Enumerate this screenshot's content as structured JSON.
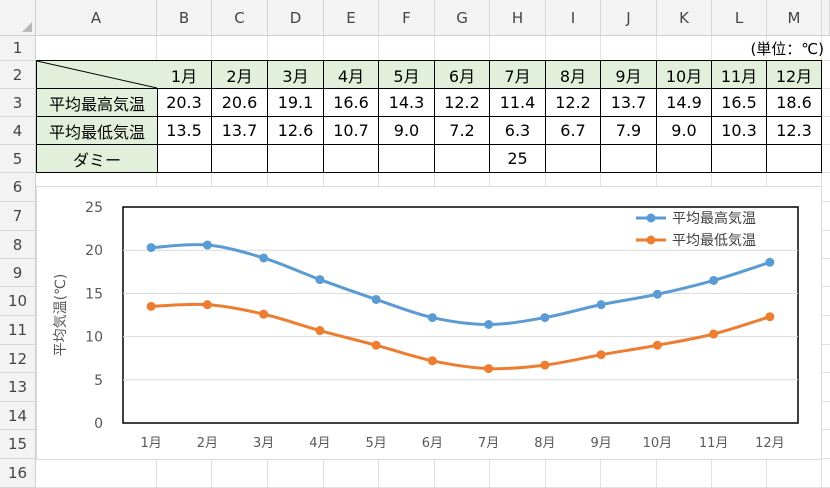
{
  "columns": [
    "A",
    "B",
    "C",
    "D",
    "E",
    "F",
    "G",
    "H",
    "I",
    "J",
    "K",
    "L",
    "M"
  ],
  "rows": [
    "1",
    "2",
    "3",
    "4",
    "5",
    "6",
    "7",
    "8",
    "9",
    "10",
    "11",
    "12",
    "13",
    "14",
    "15",
    "16"
  ],
  "unit_label": "(単位：℃)",
  "table": {
    "months": [
      "1月",
      "2月",
      "3月",
      "4月",
      "5月",
      "6月",
      "7月",
      "8月",
      "9月",
      "10月",
      "11月",
      "12月"
    ],
    "row_high": {
      "label": "平均最高気温",
      "values": [
        "20.3",
        "20.6",
        "19.1",
        "16.6",
        "14.3",
        "12.2",
        "11.4",
        "12.2",
        "13.7",
        "14.9",
        "16.5",
        "18.6"
      ]
    },
    "row_low": {
      "label": "平均最低気温",
      "values": [
        "13.5",
        "13.7",
        "12.6",
        "10.7",
        "9.0",
        "7.2",
        "6.3",
        "6.7",
        "7.9",
        "9.0",
        "10.3",
        "12.3"
      ]
    },
    "row_dummy": {
      "label": "ダミー",
      "values": [
        "",
        "",
        "",
        "",
        "",
        "",
        "25",
        "",
        "",
        "",
        "",
        ""
      ]
    }
  },
  "chart_data": {
    "type": "line",
    "categories": [
      "1月",
      "2月",
      "3月",
      "4月",
      "5月",
      "6月",
      "7月",
      "8月",
      "9月",
      "10月",
      "11月",
      "12月"
    ],
    "series": [
      {
        "name": "平均最高気温",
        "color": "#5b9bd5",
        "values": [
          20.3,
          20.6,
          19.1,
          16.6,
          14.3,
          12.2,
          11.4,
          12.2,
          13.7,
          14.9,
          16.5,
          18.6
        ]
      },
      {
        "name": "平均最低気温",
        "color": "#ed7d31",
        "values": [
          13.5,
          13.7,
          12.6,
          10.7,
          9.0,
          7.2,
          6.3,
          6.7,
          7.9,
          9.0,
          10.3,
          12.3
        ]
      }
    ],
    "ylabel": "平均気温(℃)",
    "ylim": [
      0,
      25
    ],
    "yticks": [
      "0",
      "5",
      "10",
      "15",
      "20",
      "25"
    ],
    "grid": true,
    "legend": "top-right"
  }
}
